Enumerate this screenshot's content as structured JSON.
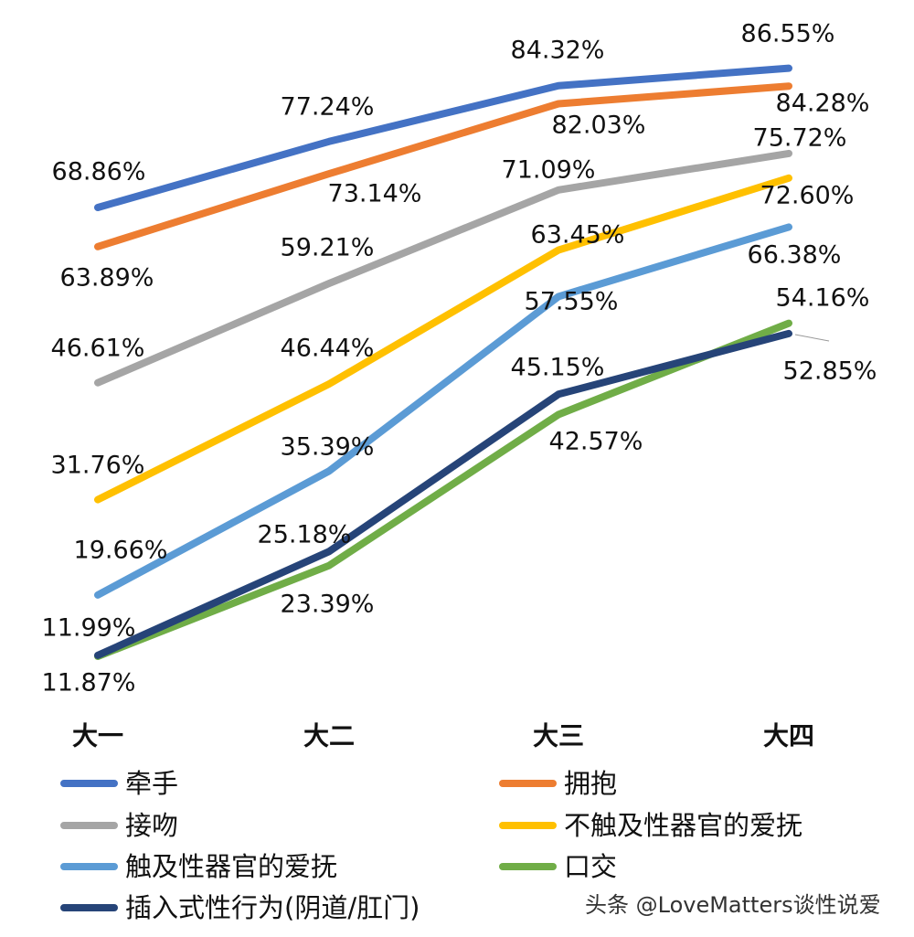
{
  "chart_data": {
    "type": "line",
    "title": "",
    "xlabel": "",
    "ylabel": "",
    "categories": [
      "大一",
      "大二",
      "大三",
      "大四"
    ],
    "grid": false,
    "legend_position": "bottom",
    "series": [
      {
        "name": "牵手",
        "color": "#4472C4",
        "values": [
          68.86,
          77.24,
          84.32,
          86.55
        ],
        "labels": [
          "68.86%",
          "77.24%",
          "84.32%",
          "86.55%"
        ]
      },
      {
        "name": "拥抱",
        "color": "#ED7D31",
        "values": [
          63.89,
          73.14,
          82.03,
          84.28
        ],
        "labels": [
          "63.89%",
          "73.14%",
          "82.03%",
          "84.28%"
        ]
      },
      {
        "name": "接吻",
        "color": "#A5A5A5",
        "values": [
          46.61,
          59.21,
          71.09,
          75.72
        ],
        "labels": [
          "46.61%",
          "59.21%",
          "71.09%",
          "75.72%"
        ]
      },
      {
        "name": "不触及性器官的爱抚",
        "color": "#FFC000",
        "values": [
          31.76,
          46.44,
          63.45,
          72.6
        ],
        "labels": [
          "31.76%",
          "46.44%",
          "63.45%",
          "72.60%"
        ]
      },
      {
        "name": "触及性器官的爱抚",
        "color": "#5B9BD5",
        "values": [
          19.66,
          35.39,
          57.55,
          66.38
        ],
        "labels": [
          "19.66%",
          "35.39%",
          "57.55%",
          "66.38%"
        ]
      },
      {
        "name": "口交",
        "color": "#70AD47",
        "values": [
          11.87,
          23.39,
          42.57,
          54.16
        ],
        "labels": [
          "11.87%",
          "23.39%",
          "42.57%",
          "54.16%"
        ]
      },
      {
        "name": "插入式性行为(阴道/肛门)",
        "color": "#264478",
        "values": [
          11.99,
          25.18,
          45.15,
          52.85
        ],
        "labels": [
          "11.99%",
          "25.18%",
          "45.15%",
          "52.85%"
        ]
      }
    ]
  },
  "watermark": "头条 @LoveMatters谈性说爱"
}
